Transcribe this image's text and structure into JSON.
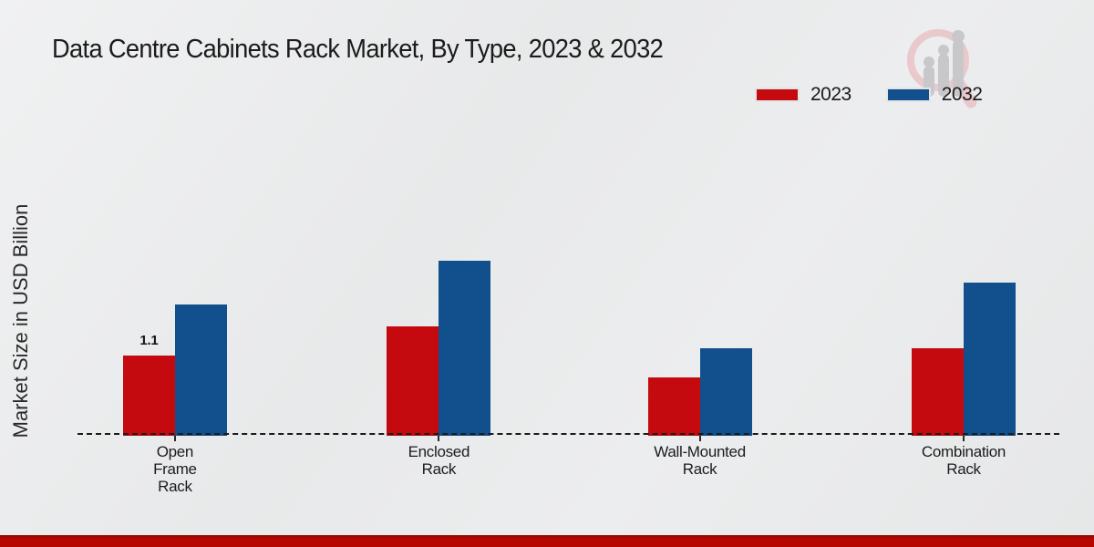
{
  "title": "Data Centre Cabinets Rack Market, By Type, 2023 & 2032",
  "y_axis_label": "Market Size in USD Billion",
  "legend": [
    {
      "label": "2023",
      "color": "#c40a0f"
    },
    {
      "label": "2032",
      "color": "#11508c"
    }
  ],
  "chart_data": {
    "type": "bar",
    "title": "Data Centre Cabinets Rack Market, By Type, 2023 & 2032",
    "ylabel": "Market Size in USD Billion",
    "xlabel": "",
    "categories": [
      "Open Frame Rack",
      "Enclosed Rack",
      "Wall-Mounted Rack",
      "Combination Rack"
    ],
    "series": [
      {
        "name": "2023",
        "color": "#c40a0f",
        "values": [
          1.1,
          1.5,
          0.8,
          1.2
        ]
      },
      {
        "name": "2032",
        "color": "#11508c",
        "values": [
          1.8,
          2.4,
          1.2,
          2.1
        ]
      }
    ],
    "annotations": [
      {
        "series": "2023",
        "category_index": 0,
        "text": "1.1"
      }
    ],
    "ylim": [
      0,
      3
    ],
    "grid": false,
    "legend_position": "top-right",
    "baseline_style": "dashed"
  }
}
